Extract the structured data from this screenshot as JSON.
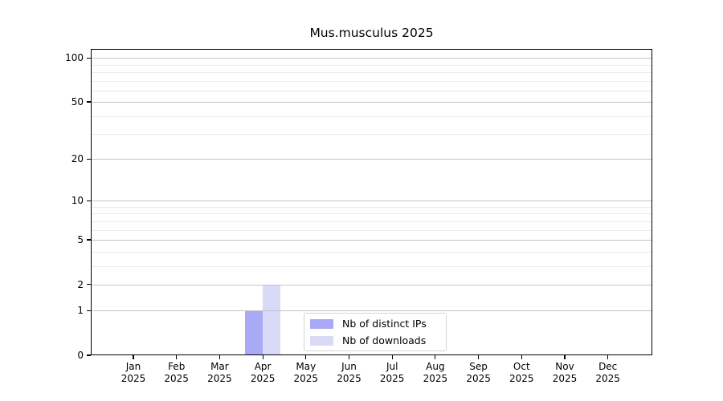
{
  "chart_data": {
    "type": "bar",
    "title": "Mus.musculus 2025",
    "categories": [
      "Jan",
      "Feb",
      "Mar",
      "Apr",
      "May",
      "Jun",
      "Jul",
      "Aug",
      "Sep",
      "Oct",
      "Nov",
      "Dec"
    ],
    "x_year": "2025",
    "series": [
      {
        "name": "Nb of distinct IPs",
        "color": "#a9a9f6",
        "values": [
          0,
          0,
          0,
          1,
          0,
          0,
          0,
          0,
          0,
          0,
          0,
          0
        ]
      },
      {
        "name": "Nb of downloads",
        "color": "#d9d9f8",
        "values": [
          0,
          0,
          0,
          2,
          0,
          0,
          0,
          0,
          0,
          0,
          0,
          0
        ]
      }
    ],
    "y_scale": "log1p",
    "ylim": [
      0,
      113
    ],
    "y_tick_labels": [
      0,
      1,
      2,
      5,
      10,
      20,
      50,
      100
    ],
    "y_gridlines_major": [
      1,
      2,
      5,
      10,
      20,
      50,
      100
    ],
    "y_gridlines_minor": [
      3,
      4,
      6,
      7,
      8,
      9,
      30,
      40,
      60,
      70,
      80,
      90
    ],
    "grid": true,
    "legend_position": "lower center"
  },
  "colors": {
    "grid_major": "#c3c3c3",
    "grid_minor": "#eaeaea",
    "spine": "#000000",
    "background": "#ffffff"
  }
}
